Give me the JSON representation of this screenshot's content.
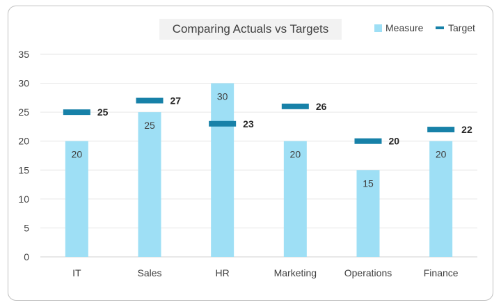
{
  "chart_data": {
    "type": "bar",
    "title": "Comparing Actuals vs Targets",
    "categories": [
      "IT",
      "Sales",
      "HR",
      "Marketing",
      "Operations",
      "Finance"
    ],
    "series": [
      {
        "name": "Measure",
        "kind": "bar",
        "values": [
          20,
          25,
          30,
          20,
          15,
          20
        ],
        "color": "#9edff5"
      },
      {
        "name": "Target",
        "kind": "marker-line",
        "values": [
          25,
          27,
          23,
          26,
          20,
          22
        ],
        "color": "#1781a8"
      }
    ],
    "ylim": [
      0,
      35
    ],
    "yticks": [
      0,
      5,
      10,
      15,
      20,
      25,
      30,
      35
    ],
    "grid": true,
    "legend": "top-right",
    "xlabel": "",
    "ylabel": ""
  }
}
